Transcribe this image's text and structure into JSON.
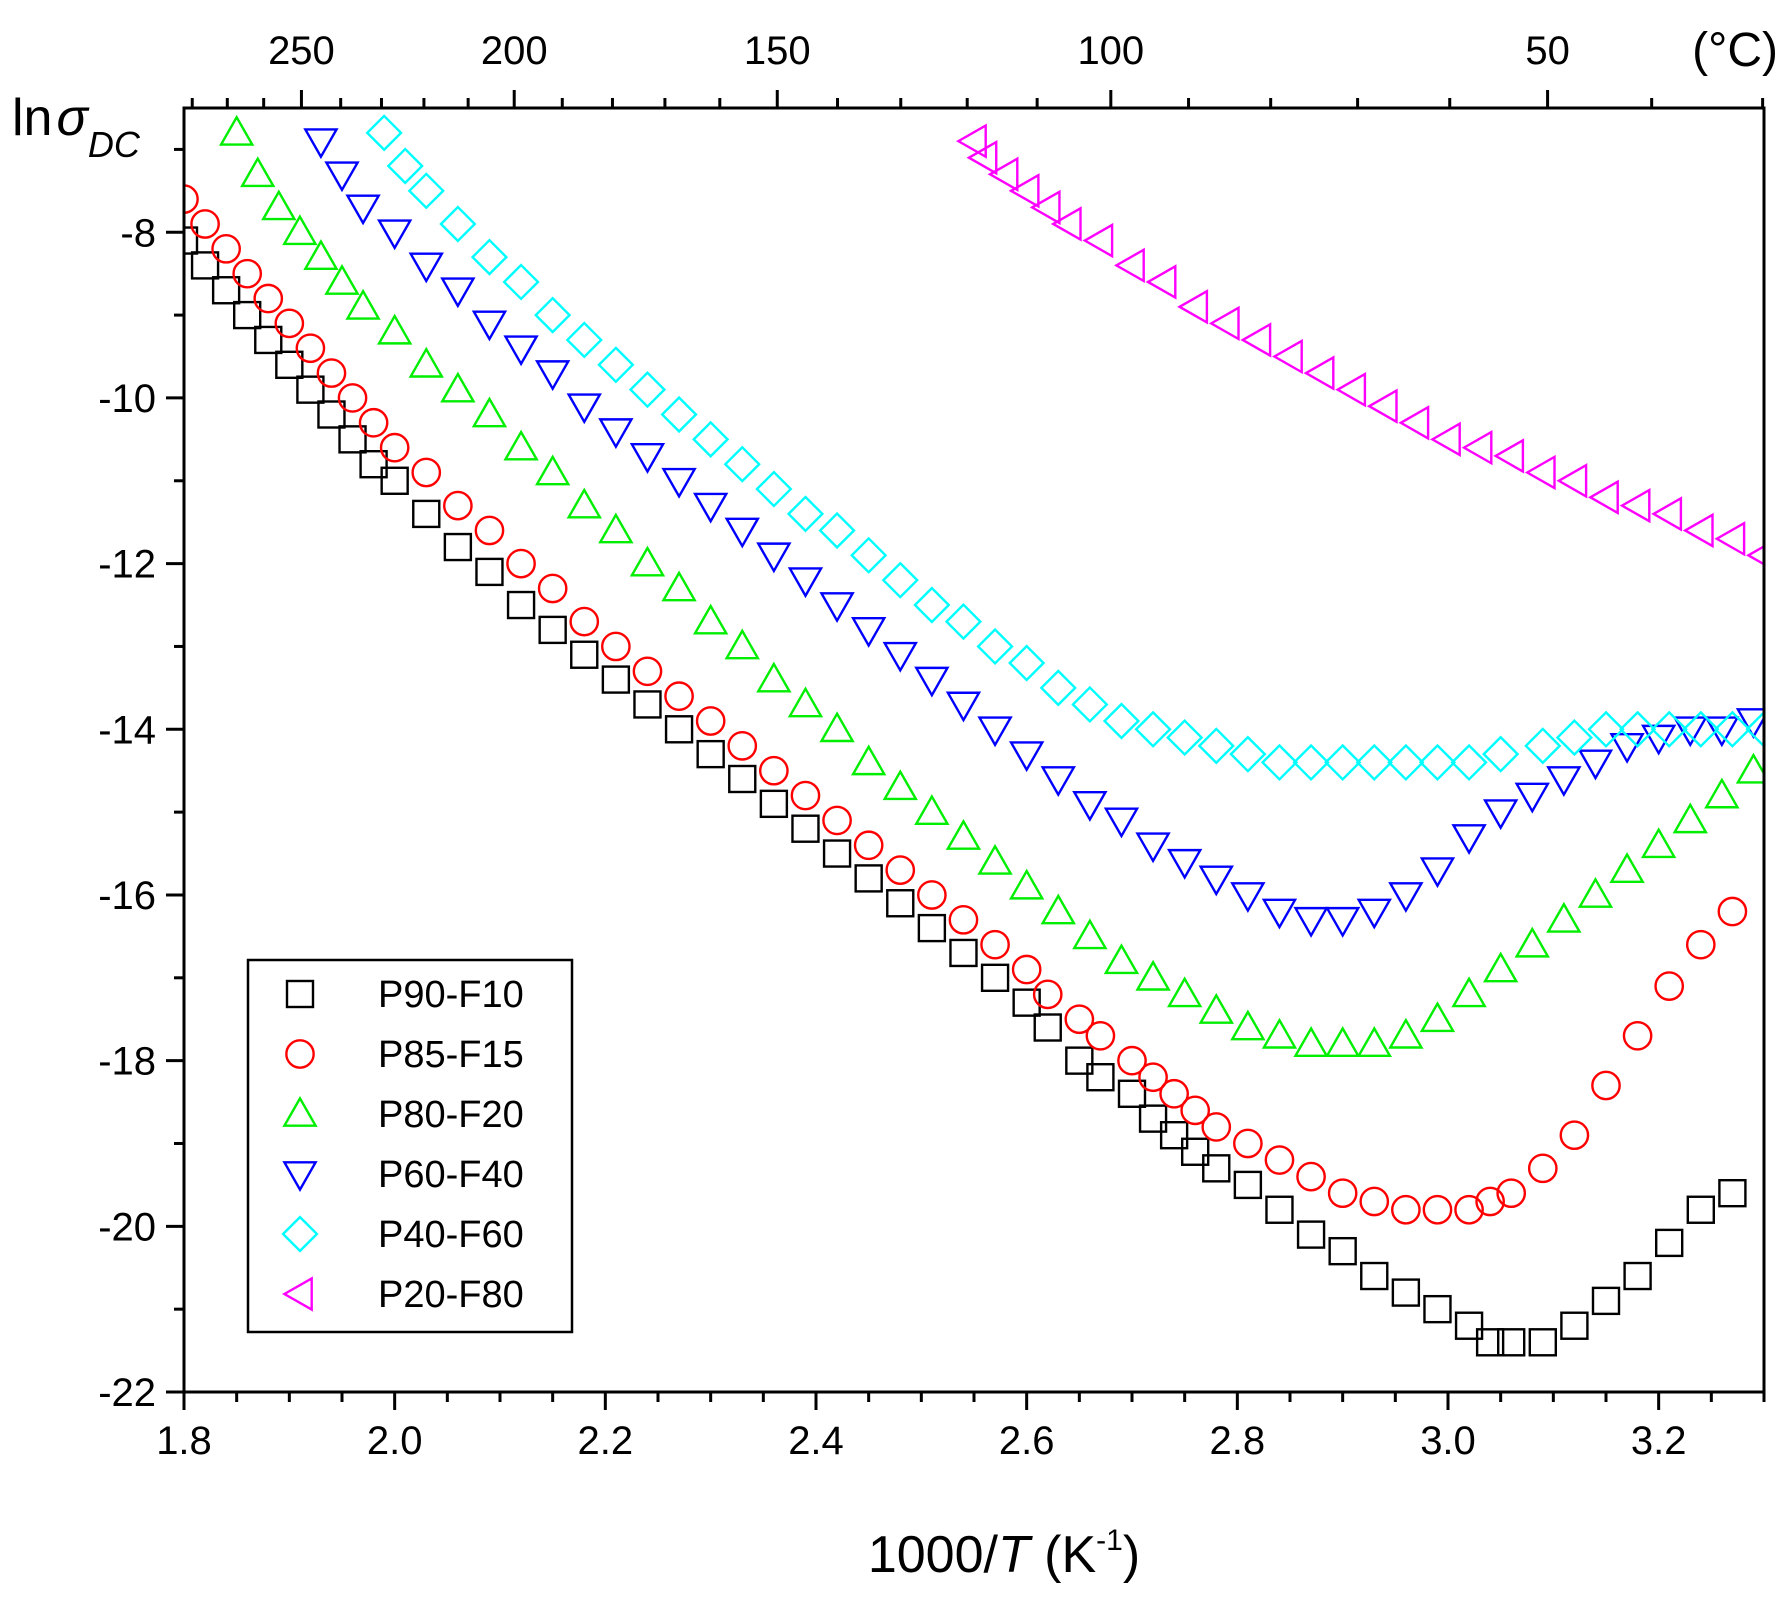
{
  "chart_data": {
    "type": "scatter",
    "title": "",
    "xlabel": {
      "prefix": "1000/",
      "italic": "T",
      "suffix": " (K",
      "sup": "-1",
      "close": ")"
    },
    "ylabel": {
      "prefix": "ln",
      "symbol": "σ",
      "sub": "DC"
    },
    "xlim": [
      1.8,
      3.3
    ],
    "ylim": [
      -22,
      -6.5
    ],
    "x_ticks": [
      1.8,
      2.0,
      2.2,
      2.4,
      2.6,
      2.8,
      3.0,
      3.2
    ],
    "x_tick_labels": [
      "1.8",
      "2.0",
      "2.2",
      "2.4",
      "2.6",
      "2.8",
      "3.0",
      "3.2"
    ],
    "y_ticks": [
      -8,
      -10,
      -12,
      -14,
      -16,
      -18,
      -20,
      -22
    ],
    "y_tick_labels": [
      "-8",
      "-10",
      "-12",
      "-14",
      "-16",
      "-18",
      "-20",
      "-22"
    ],
    "top_axis": {
      "unit_label": "(°C)",
      "ticks_celsius": [
        250,
        200,
        150,
        100,
        50
      ],
      "tick_labels": [
        "250",
        "200",
        "150",
        "100",
        "50"
      ]
    },
    "legend_position": "bottom-left",
    "series": [
      {
        "name": "P90-F10",
        "marker": "square",
        "color": "#000000",
        "x": [
          1.8,
          1.82,
          1.84,
          1.86,
          1.88,
          1.9,
          1.92,
          1.94,
          1.96,
          1.98,
          2.0,
          2.03,
          2.06,
          2.09,
          2.12,
          2.15,
          2.18,
          2.21,
          2.24,
          2.27,
          2.3,
          2.33,
          2.36,
          2.39,
          2.42,
          2.45,
          2.48,
          2.51,
          2.54,
          2.57,
          2.6,
          2.62,
          2.65,
          2.67,
          2.7,
          2.72,
          2.74,
          2.76,
          2.78,
          2.81,
          2.84,
          2.87,
          2.9,
          2.93,
          2.96,
          2.99,
          3.02,
          3.04,
          3.06,
          3.09,
          3.12,
          3.15,
          3.18,
          3.21,
          3.24,
          3.27
        ],
        "y": [
          -8.1,
          -8.4,
          -8.7,
          -9.0,
          -9.3,
          -9.6,
          -9.9,
          -10.2,
          -10.5,
          -10.8,
          -11.0,
          -11.4,
          -11.8,
          -12.1,
          -12.5,
          -12.8,
          -13.1,
          -13.4,
          -13.7,
          -14.0,
          -14.3,
          -14.6,
          -14.9,
          -15.2,
          -15.5,
          -15.8,
          -16.1,
          -16.4,
          -16.7,
          -17.0,
          -17.3,
          -17.6,
          -18.0,
          -18.2,
          -18.4,
          -18.7,
          -18.9,
          -19.1,
          -19.3,
          -19.5,
          -19.8,
          -20.1,
          -20.3,
          -20.6,
          -20.8,
          -21.0,
          -21.2,
          -21.4,
          -21.4,
          -21.4,
          -21.2,
          -20.9,
          -20.6,
          -20.2,
          -19.8,
          -19.6
        ]
      },
      {
        "name": "P85-F15",
        "marker": "circle",
        "color": "#ff0000",
        "x": [
          1.8,
          1.82,
          1.84,
          1.86,
          1.88,
          1.9,
          1.92,
          1.94,
          1.96,
          1.98,
          2.0,
          2.03,
          2.06,
          2.09,
          2.12,
          2.15,
          2.18,
          2.21,
          2.24,
          2.27,
          2.3,
          2.33,
          2.36,
          2.39,
          2.42,
          2.45,
          2.48,
          2.51,
          2.54,
          2.57,
          2.6,
          2.62,
          2.65,
          2.67,
          2.7,
          2.72,
          2.74,
          2.76,
          2.78,
          2.81,
          2.84,
          2.87,
          2.9,
          2.93,
          2.96,
          2.99,
          3.02,
          3.04,
          3.06,
          3.09,
          3.12,
          3.15,
          3.18,
          3.21,
          3.24,
          3.27
        ],
        "y": [
          -7.6,
          -7.9,
          -8.2,
          -8.5,
          -8.8,
          -9.1,
          -9.4,
          -9.7,
          -10.0,
          -10.3,
          -10.6,
          -10.9,
          -11.3,
          -11.6,
          -12.0,
          -12.3,
          -12.7,
          -13.0,
          -13.3,
          -13.6,
          -13.9,
          -14.2,
          -14.5,
          -14.8,
          -15.1,
          -15.4,
          -15.7,
          -16.0,
          -16.3,
          -16.6,
          -16.9,
          -17.2,
          -17.5,
          -17.7,
          -18.0,
          -18.2,
          -18.4,
          -18.6,
          -18.8,
          -19.0,
          -19.2,
          -19.4,
          -19.6,
          -19.7,
          -19.8,
          -19.8,
          -19.8,
          -19.7,
          -19.6,
          -19.3,
          -18.9,
          -18.3,
          -17.7,
          -17.1,
          -16.6,
          -16.2
        ]
      },
      {
        "name": "P80-F20",
        "marker": "triangle-up",
        "color": "#00ee00",
        "x": [
          1.85,
          1.87,
          1.89,
          1.91,
          1.93,
          1.95,
          1.97,
          2.0,
          2.03,
          2.06,
          2.09,
          2.12,
          2.15,
          2.18,
          2.21,
          2.24,
          2.27,
          2.3,
          2.33,
          2.36,
          2.39,
          2.42,
          2.45,
          2.48,
          2.51,
          2.54,
          2.57,
          2.6,
          2.63,
          2.66,
          2.69,
          2.72,
          2.75,
          2.78,
          2.81,
          2.84,
          2.87,
          2.9,
          2.93,
          2.96,
          2.99,
          3.02,
          3.05,
          3.08,
          3.11,
          3.14,
          3.17,
          3.2,
          3.23,
          3.26,
          3.29
        ],
        "y": [
          -6.8,
          -7.3,
          -7.7,
          -8.0,
          -8.3,
          -8.6,
          -8.9,
          -9.2,
          -9.6,
          -9.9,
          -10.2,
          -10.6,
          -10.9,
          -11.3,
          -11.6,
          -12.0,
          -12.3,
          -12.7,
          -13.0,
          -13.4,
          -13.7,
          -14.0,
          -14.4,
          -14.7,
          -15.0,
          -15.3,
          -15.6,
          -15.9,
          -16.2,
          -16.5,
          -16.8,
          -17.0,
          -17.2,
          -17.4,
          -17.6,
          -17.7,
          -17.8,
          -17.8,
          -17.8,
          -17.7,
          -17.5,
          -17.2,
          -16.9,
          -16.6,
          -16.3,
          -16.0,
          -15.7,
          -15.4,
          -15.1,
          -14.8,
          -14.5
        ]
      },
      {
        "name": "P60-F40",
        "marker": "triangle-down",
        "color": "#0000ff",
        "x": [
          1.93,
          1.95,
          1.97,
          2.0,
          2.03,
          2.06,
          2.09,
          2.12,
          2.15,
          2.18,
          2.21,
          2.24,
          2.27,
          2.3,
          2.33,
          2.36,
          2.39,
          2.42,
          2.45,
          2.48,
          2.51,
          2.54,
          2.57,
          2.6,
          2.63,
          2.66,
          2.69,
          2.72,
          2.75,
          2.78,
          2.81,
          2.84,
          2.87,
          2.9,
          2.93,
          2.96,
          2.99,
          3.02,
          3.05,
          3.08,
          3.11,
          3.14,
          3.17,
          3.2,
          3.23,
          3.26,
          3.29
        ],
        "y": [
          -6.9,
          -7.3,
          -7.7,
          -8.0,
          -8.4,
          -8.7,
          -9.1,
          -9.4,
          -9.7,
          -10.1,
          -10.4,
          -10.7,
          -11.0,
          -11.3,
          -11.6,
          -11.9,
          -12.2,
          -12.5,
          -12.8,
          -13.1,
          -13.4,
          -13.7,
          -14.0,
          -14.3,
          -14.6,
          -14.9,
          -15.1,
          -15.4,
          -15.6,
          -15.8,
          -16.0,
          -16.2,
          -16.3,
          -16.3,
          -16.2,
          -16.0,
          -15.7,
          -15.3,
          -15.0,
          -14.8,
          -14.6,
          -14.4,
          -14.2,
          -14.1,
          -14.0,
          -14.0,
          -13.9
        ]
      },
      {
        "name": "P40-F60",
        "marker": "diamond",
        "color": "#00ffff",
        "x": [
          1.99,
          2.01,
          2.03,
          2.06,
          2.09,
          2.12,
          2.15,
          2.18,
          2.21,
          2.24,
          2.27,
          2.3,
          2.33,
          2.36,
          2.39,
          2.42,
          2.45,
          2.48,
          2.51,
          2.54,
          2.57,
          2.6,
          2.63,
          2.66,
          2.69,
          2.72,
          2.75,
          2.78,
          2.81,
          2.84,
          2.87,
          2.9,
          2.93,
          2.96,
          2.99,
          3.02,
          3.05,
          3.09,
          3.12,
          3.15,
          3.18,
          3.21,
          3.24,
          3.27,
          3.3
        ],
        "y": [
          -6.8,
          -7.2,
          -7.5,
          -7.9,
          -8.3,
          -8.6,
          -9.0,
          -9.3,
          -9.6,
          -9.9,
          -10.2,
          -10.5,
          -10.8,
          -11.1,
          -11.4,
          -11.6,
          -11.9,
          -12.2,
          -12.5,
          -12.7,
          -13.0,
          -13.2,
          -13.5,
          -13.7,
          -13.9,
          -14.0,
          -14.1,
          -14.2,
          -14.3,
          -14.4,
          -14.4,
          -14.4,
          -14.4,
          -14.4,
          -14.4,
          -14.4,
          -14.3,
          -14.2,
          -14.1,
          -14.0,
          -14.0,
          -14.0,
          -14.0,
          -14.0,
          -14.0
        ]
      },
      {
        "name": "P20-F80",
        "marker": "triangle-left",
        "color": "#ff00ff",
        "x": [
          2.55,
          2.56,
          2.58,
          2.6,
          2.62,
          2.64,
          2.67,
          2.7,
          2.73,
          2.76,
          2.79,
          2.82,
          2.85,
          2.88,
          2.91,
          2.94,
          2.97,
          3.0,
          3.03,
          3.06,
          3.09,
          3.12,
          3.15,
          3.18,
          3.21,
          3.24,
          3.27,
          3.3
        ],
        "y": [
          -6.9,
          -7.1,
          -7.3,
          -7.5,
          -7.7,
          -7.9,
          -8.1,
          -8.4,
          -8.6,
          -8.9,
          -9.1,
          -9.3,
          -9.5,
          -9.7,
          -9.9,
          -10.1,
          -10.3,
          -10.5,
          -10.6,
          -10.7,
          -10.9,
          -11.0,
          -11.2,
          -11.3,
          -11.4,
          -11.6,
          -11.7,
          -11.9
        ]
      }
    ]
  }
}
